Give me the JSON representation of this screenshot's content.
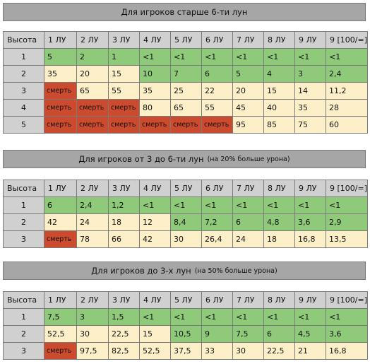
{
  "columns": [
    "Высота",
    "1 ЛУ",
    "2 ЛУ",
    "3 ЛУ",
    "4 ЛУ",
    "5 ЛУ",
    "6 ЛУ",
    "7 ЛУ",
    "8 ЛУ",
    "9 ЛУ",
    "9 [100/=]"
  ],
  "sections": [
    {
      "title": "Для игроков старше 6-ти лун",
      "note": "",
      "rows": [
        {
          "height": "1",
          "cells": [
            "5",
            "2",
            "1",
            "<1",
            "<1",
            "<1",
            "<1",
            "<1",
            "<1",
            "<1"
          ]
        },
        {
          "height": "2",
          "cells": [
            "35",
            "20",
            "15",
            "10",
            "7",
            "6",
            "5",
            "4",
            "3",
            "2,4"
          ]
        },
        {
          "height": "3",
          "cells": [
            "смерть",
            "65",
            "55",
            "35",
            "25",
            "22",
            "20",
            "15",
            "14",
            "11,2"
          ]
        },
        {
          "height": "4",
          "cells": [
            "смерть",
            "смерть",
            "смерть",
            "80",
            "65",
            "55",
            "45",
            "40",
            "35",
            "28"
          ]
        },
        {
          "height": "5",
          "cells": [
            "смерть",
            "смерть",
            "смерть",
            "смерть",
            "смерть",
            "смерть",
            "95",
            "85",
            "75",
            "60"
          ]
        }
      ]
    },
    {
      "title": "Для игроков от 3 до 6-ти лун",
      "note": "(на 20% больше урона)",
      "rows": [
        {
          "height": "1",
          "cells": [
            "6",
            "2,4",
            "1,2",
            "<1",
            "<1",
            "<1",
            "<1",
            "<1",
            "<1",
            "<1"
          ]
        },
        {
          "height": "2",
          "cells": [
            "42",
            "24",
            "18",
            "12",
            "8,4",
            "7,2",
            "6",
            "4,8",
            "3,6",
            "2,9"
          ]
        },
        {
          "height": "3",
          "cells": [
            "смерть",
            "78",
            "66",
            "42",
            "30",
            "26,4",
            "24",
            "18",
            "16,8",
            "13,5"
          ]
        }
      ]
    },
    {
      "title": "Для игроков до 3-х лун",
      "note": "(на 50% больше урона)",
      "rows": [
        {
          "height": "1",
          "cells": [
            "7,5",
            "3",
            "1,5",
            "<1",
            "<1",
            "<1",
            "<1",
            "<1",
            "<1",
            "<1"
          ]
        },
        {
          "height": "2",
          "cells": [
            "52,5",
            "30",
            "22,5",
            "15",
            "10,5",
            "9",
            "7,5",
            "6",
            "4,5",
            "3,6"
          ]
        },
        {
          "height": "3",
          "cells": [
            "смерть",
            "97,5",
            "82,5",
            "52,5",
            "37,5",
            "33",
            "30",
            "22,5",
            "21",
            "16,8"
          ]
        }
      ]
    }
  ],
  "colors": {
    "green": "#8fc97a",
    "cream": "#fdf0c9",
    "red": "#cc4a2e",
    "header_gray": "#d0d0d0",
    "title_bar": "#a6a6a6"
  }
}
